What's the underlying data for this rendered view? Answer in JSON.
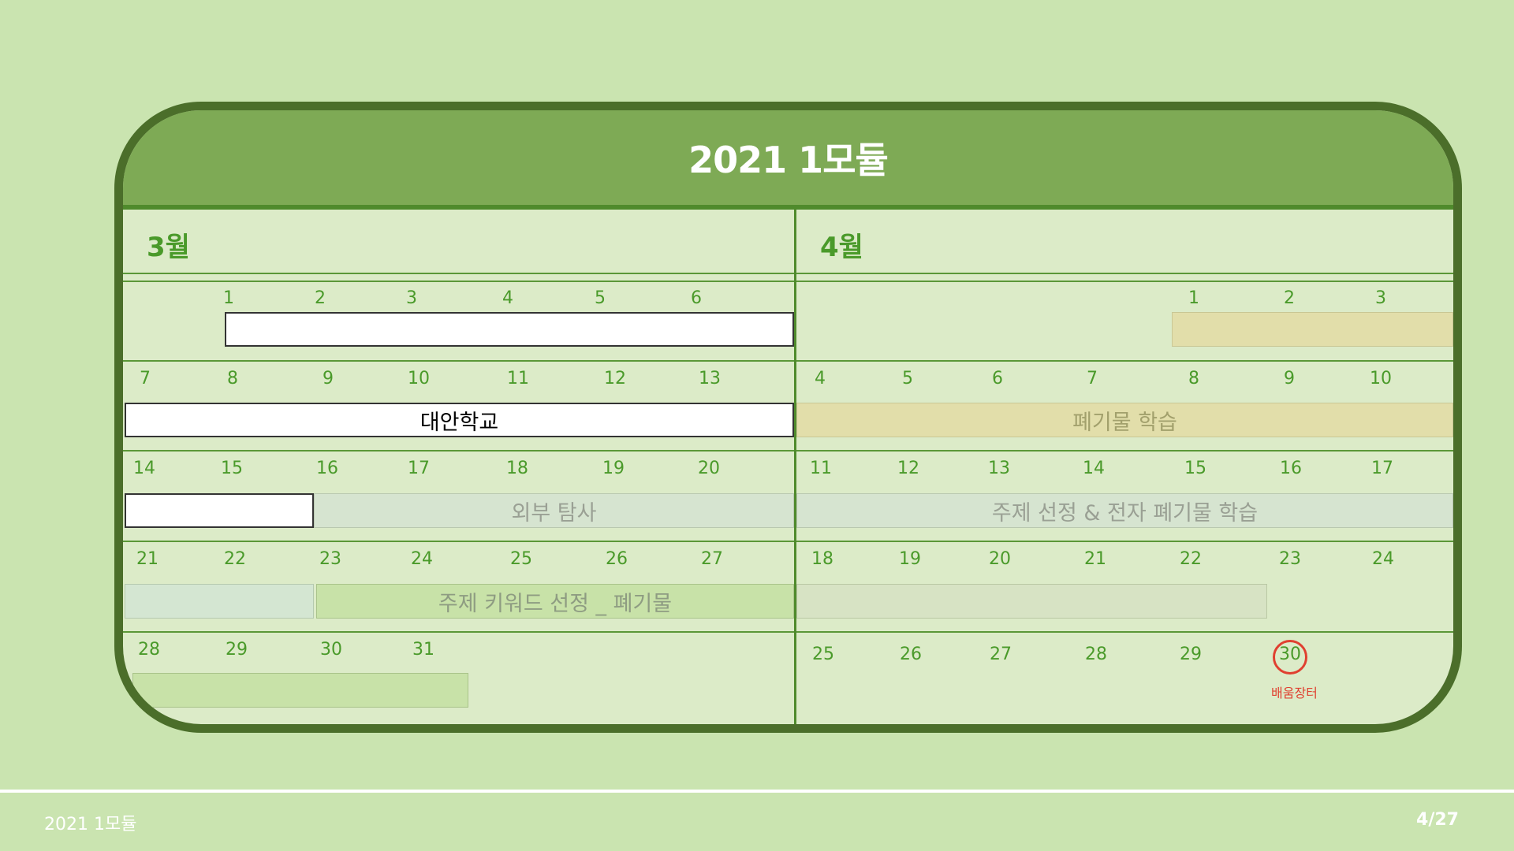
{
  "title": "2021 1모듈",
  "months": {
    "march": {
      "label": "3월",
      "weeks": [
        [
          "",
          "1",
          "2",
          "3",
          "4",
          "5",
          "6"
        ],
        [
          "7",
          "8",
          "9",
          "10",
          "11",
          "12",
          "13"
        ],
        [
          "14",
          "15",
          "16",
          "17",
          "18",
          "19",
          "20"
        ],
        [
          "21",
          "22",
          "23",
          "24",
          "25",
          "26",
          "27"
        ],
        [
          "28",
          "29",
          "30",
          "31",
          "",
          "",
          ""
        ]
      ]
    },
    "april": {
      "label": "4월",
      "weeks": [
        [
          "",
          "",
          "",
          "",
          "1",
          "2",
          "3"
        ],
        [
          "4",
          "5",
          "6",
          "7",
          "8",
          "9",
          "10"
        ],
        [
          "11",
          "12",
          "13",
          "14",
          "15",
          "16",
          "17"
        ],
        [
          "18",
          "19",
          "20",
          "21",
          "22",
          "23",
          "24"
        ],
        [
          "25",
          "26",
          "27",
          "28",
          "29",
          "30",
          ""
        ]
      ]
    }
  },
  "events": {
    "daean_school": "대안학교",
    "waste_learning": "폐기물 학습",
    "outside_exploration": "외부 탐사",
    "topic_selection": "주제 선정 & 전자 폐기물 학습",
    "keyword_selection": "주제 키워드 선정 _ 폐기물",
    "market_label": "배움장터"
  },
  "colors": {
    "background": "#cae4b0",
    "header": "#7eaa55",
    "frame_border": "#4b6e2a",
    "text_green": "#4a9a2a",
    "highlight_red": "#e04030"
  },
  "footer": {
    "left": "2021 1모듈",
    "page": "4/27"
  }
}
